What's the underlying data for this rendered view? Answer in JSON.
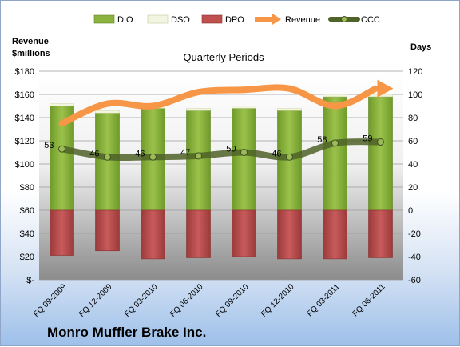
{
  "company": "Monro Muffler Brake Inc.",
  "chart_data": {
    "type": "bar",
    "title": "Quarterly Periods",
    "categories": [
      "FQ 09-2009",
      "FQ 12-2009",
      "FQ 03-2010",
      "FQ 06-2010",
      "FQ 09-2010",
      "FQ 12-2010",
      "FQ 03-2011",
      "FQ 06-2011"
    ],
    "left_axis": {
      "title_line1": "Revenue",
      "title_line2": "$millions",
      "ylim": [
        0,
        180
      ],
      "ticks": [
        "$-",
        "$20",
        "$40",
        "$60",
        "$80",
        "$100",
        "$120",
        "$140",
        "$160",
        "$180"
      ]
    },
    "right_axis": {
      "title": "Days",
      "ylim": [
        -60,
        120
      ],
      "ticks": [
        "-60",
        "-40",
        "-20",
        "0",
        "20",
        "40",
        "60",
        "80",
        "100",
        "120"
      ]
    },
    "legend": [
      "DIO",
      "DSO",
      "DPO",
      "Revenue",
      "CCC"
    ],
    "legend_position": "top",
    "series": [
      {
        "name": "DIO",
        "axis": "right",
        "color": "#8db33f",
        "values": [
          90,
          84,
          88,
          86,
          88,
          86,
          98,
          98
        ]
      },
      {
        "name": "DSO",
        "axis": "right",
        "color": "#f2f5df",
        "values": [
          2,
          2,
          2,
          2,
          2,
          2,
          2,
          2
        ]
      },
      {
        "name": "DPO",
        "axis": "right",
        "color": "#c0504d",
        "values": [
          -39,
          -35,
          -42,
          -41,
          -40,
          -42,
          -42,
          -41
        ]
      },
      {
        "name": "Revenue",
        "axis": "left",
        "color": "#f79646",
        "values": [
          135,
          152,
          150,
          162,
          164,
          165,
          150,
          165
        ]
      },
      {
        "name": "CCC",
        "axis": "right",
        "color": "#4f6228",
        "values": [
          53,
          46,
          46,
          47,
          50,
          46,
          58,
          59
        ],
        "labels": [
          "53",
          "46",
          "46",
          "47",
          "50",
          "46",
          "58",
          "59"
        ]
      }
    ],
    "grid": true
  }
}
